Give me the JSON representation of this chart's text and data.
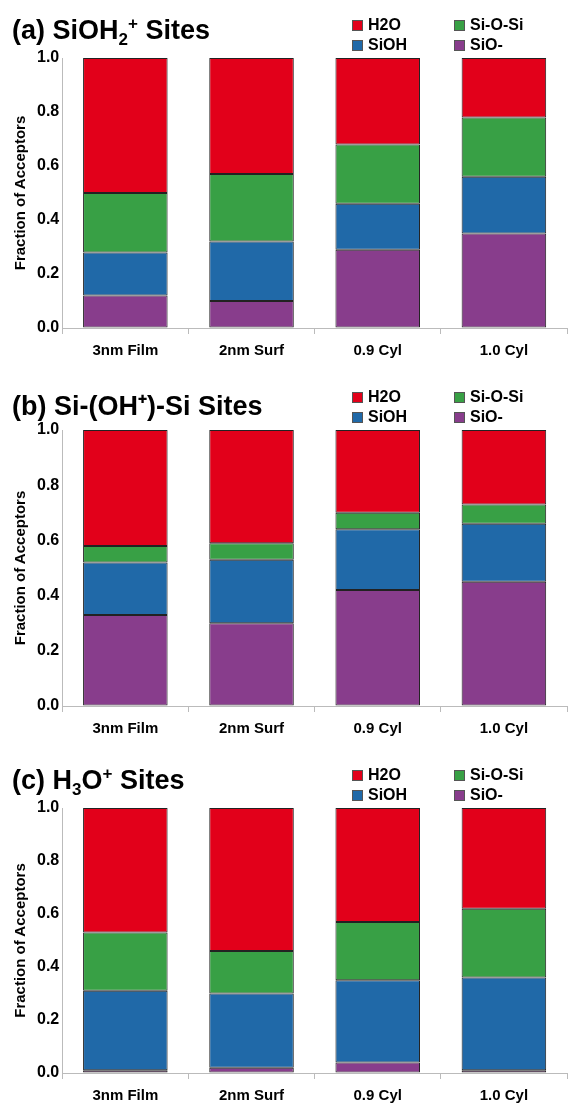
{
  "chart_data": [
    {
      "type": "bar",
      "stacked": true,
      "title": "(a) SiOH$_{2}$$^{+}$ Sites",
      "ylabel": "Fraction of Acceptors",
      "categories": [
        "3nm Film",
        "2nm Surf",
        "0.9 Cyl",
        "1.0 Cyl"
      ],
      "ylim": [
        0,
        1
      ],
      "yticks": [
        {
          "value": 0,
          "label": "0.0"
        },
        {
          "value": 0.2,
          "label": "0.2"
        },
        {
          "value": 0.4,
          "label": "0.4"
        },
        {
          "value": 0.6,
          "label": "0.6"
        },
        {
          "value": 0.8,
          "label": "0.8"
        },
        {
          "value": 1,
          "label": "1.0"
        }
      ],
      "grid": false,
      "legend": "top right",
      "series": [
        {
          "name": "SiO-",
          "color": "#883d8c",
          "values": [
            0.12,
            0.1,
            0.29,
            0.35
          ]
        },
        {
          "name": "SiOH",
          "color": "#2069a8",
          "values": [
            0.16,
            0.22,
            0.17,
            0.21
          ]
        },
        {
          "name": "Si-O-Si",
          "color": "#38a045",
          "values": [
            0.22,
            0.25,
            0.22,
            0.22
          ]
        },
        {
          "name": "H2O",
          "color": "#e2001a",
          "values": [
            0.5,
            0.43,
            0.32,
            0.22
          ]
        }
      ]
    },
    {
      "type": "bar",
      "stacked": true,
      "title": "(b) Si-(OH⁺)-Si Sites",
      "ylabel": "Fraction of Acceptors",
      "categories": [
        "3nm Film",
        "2nm Surf",
        "0.9 Cyl",
        "1.0 Cyl"
      ],
      "ylim": [
        0,
        1
      ],
      "yticks": [
        {
          "value": 0,
          "label": "0.0"
        },
        {
          "value": 0.2,
          "label": "0.2"
        },
        {
          "value": 0.4,
          "label": "0.4"
        },
        {
          "value": 0.6,
          "label": "0.6"
        },
        {
          "value": 0.8,
          "label": "0.8"
        },
        {
          "value": 1,
          "label": "1.0"
        }
      ],
      "grid": false,
      "legend": "top right",
      "series": [
        {
          "name": "SiO-",
          "color": "#883d8c",
          "values": [
            0.33,
            0.3,
            0.42,
            0.45
          ]
        },
        {
          "name": "SiOH",
          "color": "#2069a8",
          "values": [
            0.19,
            0.23,
            0.22,
            0.21
          ]
        },
        {
          "name": "Si-O-Si",
          "color": "#38a045",
          "values": [
            0.06,
            0.06,
            0.06,
            0.07
          ]
        },
        {
          "name": "H2O",
          "color": "#e2001a",
          "values": [
            0.42,
            0.41,
            0.3,
            0.27
          ]
        }
      ]
    },
    {
      "type": "bar",
      "stacked": true,
      "title": "(c) H$_{3}$O$^{+}$ Sites",
      "ylabel": "Fraction of Acceptors",
      "categories": [
        "3nm Film",
        "2nm Surf",
        "0.9 Cyl",
        "1.0 Cyl"
      ],
      "ylim": [
        0,
        1
      ],
      "yticks": [
        {
          "value": 0,
          "label": "0.0"
        },
        {
          "value": 0.2,
          "label": "0.2"
        },
        {
          "value": 0.4,
          "label": "0.4"
        },
        {
          "value": 0.6,
          "label": "0.6"
        },
        {
          "value": 0.8,
          "label": "0.8"
        },
        {
          "value": 1,
          "label": "1.0"
        }
      ],
      "grid": false,
      "legend": "top right",
      "series": [
        {
          "name": "SiO-",
          "color": "#883d8c",
          "values": [
            0.01,
            0.02,
            0.04,
            0.01
          ]
        },
        {
          "name": "SiOH",
          "color": "#2069a8",
          "values": [
            0.3,
            0.28,
            0.31,
            0.35
          ]
        },
        {
          "name": "Si-O-Si",
          "color": "#38a045",
          "values": [
            0.22,
            0.16,
            0.22,
            0.26
          ]
        },
        {
          "name": "H2O",
          "color": "#e2001a",
          "values": [
            0.47,
            0.54,
            0.43,
            0.38
          ]
        }
      ]
    }
  ]
}
